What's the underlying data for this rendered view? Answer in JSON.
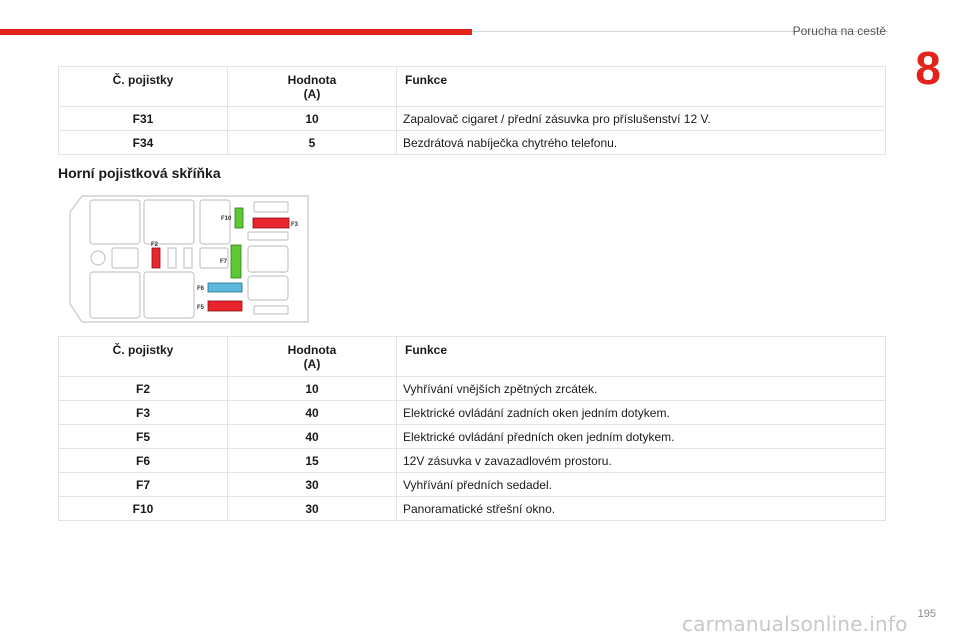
{
  "header": {
    "section": "Porucha na cestě",
    "chapter": "8"
  },
  "table1": {
    "headers": {
      "fuse": "Č. pojistky",
      "value_line1": "Hodnota",
      "value_line2": "(A)",
      "function": "Funkce"
    },
    "rows": [
      {
        "fuse": "F31",
        "value": "10",
        "function": "Zapalovač cigaret / přední zásuvka pro příslušenství 12 V."
      },
      {
        "fuse": "F34",
        "value": "5",
        "function": "Bezdrátová nabíječka chytrého telefonu."
      }
    ]
  },
  "subtitle": "Horní pojistková skříňka",
  "diagram": {
    "labels": {
      "f10": "F10",
      "f3": "F3",
      "f2": "F2",
      "f7": "F7",
      "f6": "F6",
      "f5": "F5"
    },
    "colors": {
      "red": "#e8242c",
      "green": "#5ec935",
      "blue": "#5cb8dc",
      "outline": "#c8c8c8"
    }
  },
  "table2": {
    "headers": {
      "fuse": "Č. pojistky",
      "value_line1": "Hodnota",
      "value_line2": "(A)",
      "function": "Funkce"
    },
    "rows": [
      {
        "fuse": "F2",
        "value": "10",
        "function": "Vyhřívání vnějších zpětných zrcátek."
      },
      {
        "fuse": "F3",
        "value": "40",
        "function": "Elektrické ovládání zadních oken jedním dotykem."
      },
      {
        "fuse": "F5",
        "value": "40",
        "function": "Elektrické ovládání předních oken jedním dotykem."
      },
      {
        "fuse": "F6",
        "value": "15",
        "function": "12V zásuvka v zavazadlovém prostoru."
      },
      {
        "fuse": "F7",
        "value": "30",
        "function": "Vyhřívání předních sedadel."
      },
      {
        "fuse": "F10",
        "value": "30",
        "function": "Panoramatické střešní okno."
      }
    ]
  },
  "footer": {
    "page": "195",
    "watermark": "carmanualsonline.info"
  }
}
